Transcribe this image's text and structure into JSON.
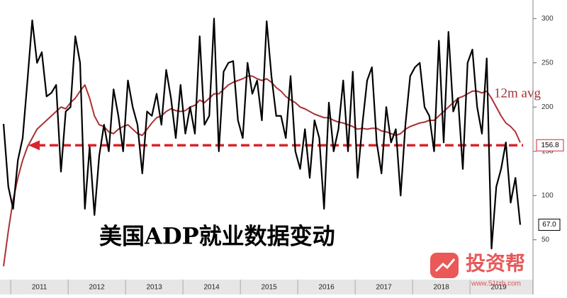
{
  "chart_data": {
    "type": "line",
    "title": "美国ADP就业数据变动",
    "annotation": "12m avg",
    "watermark": {
      "brand": "投资帮",
      "url": "www.51tzb.com"
    },
    "categories": [
      null,
      null,
      null,
      null,
      null,
      null,
      null,
      null,
      null,
      null,
      null,
      null,
      null,
      null,
      null,
      null,
      null,
      null,
      null,
      null,
      null,
      null,
      null,
      null,
      null,
      null,
      null,
      null,
      null,
      null,
      null,
      null,
      null,
      null,
      null,
      null,
      null,
      null,
      null,
      null,
      null,
      null,
      null,
      null,
      null,
      null,
      null,
      null,
      null,
      null,
      null,
      null,
      null,
      null,
      null,
      null,
      null,
      null,
      null,
      null,
      null,
      null,
      null,
      null,
      null,
      null,
      null,
      null,
      null,
      null,
      null,
      null,
      null,
      null,
      null,
      null,
      null,
      null,
      null,
      null,
      null,
      null,
      null,
      null,
      null,
      null,
      null,
      null,
      null,
      null,
      null,
      null,
      null,
      null,
      null,
      null,
      null,
      null,
      null,
      null,
      null,
      null,
      null,
      null,
      null,
      null,
      null,
      null,
      null
    ],
    "year_labels": [
      "2011",
      "2012",
      "2013",
      "2014",
      "2015",
      "2016",
      "2017",
      "2018",
      "2019"
    ],
    "series": [
      {
        "name": "ADP",
        "color": "#000000",
        "end_label": "67.0",
        "values": [
          181,
          110,
          85,
          140,
          165,
          230,
          298,
          250,
          262,
          212,
          216,
          225,
          127,
          195,
          200,
          280,
          250,
          85,
          155,
          78,
          145,
          180,
          150,
          220,
          190,
          150,
          230,
          200,
          180,
          125,
          195,
          190,
          215,
          180,
          242,
          210,
          165,
          225,
          170,
          200,
          170,
          280,
          180,
          190,
          300,
          150,
          240,
          250,
          252,
          185,
          165,
          250,
          215,
          230,
          185,
          297,
          235,
          190,
          190,
          165,
          235,
          150,
          130,
          175,
          120,
          185,
          165,
          85,
          205,
          150,
          175,
          230,
          150,
          240,
          120,
          180,
          230,
          245,
          160,
          125,
          200,
          160,
          175,
          100,
          180,
          235,
          245,
          250,
          200,
          190,
          150,
          275,
          160,
          285,
          195,
          210,
          130,
          250,
          265,
          200,
          170,
          255,
          40,
          110,
          130,
          160,
          92,
          120,
          67
        ]
      },
      {
        "name": "12m avg",
        "color": "#a83236",
        "values": [
          20,
          60,
          95,
          120,
          140,
          155,
          165,
          175,
          180,
          185,
          190,
          195,
          200,
          198,
          205,
          210,
          218,
          225,
          210,
          190,
          180,
          178,
          172,
          170,
          175,
          178,
          180,
          175,
          170,
          168,
          175,
          182,
          188,
          190,
          195,
          198,
          196,
          195,
          196,
          200,
          202,
          208,
          205,
          210,
          215,
          215,
          220,
          225,
          228,
          230,
          232,
          235,
          235,
          232,
          230,
          232,
          228,
          222,
          218,
          212,
          208,
          205,
          200,
          198,
          195,
          192,
          190,
          188,
          188,
          185,
          183,
          182,
          180,
          178,
          175,
          176,
          175,
          176,
          176,
          173,
          172,
          170,
          168,
          170,
          175,
          178,
          180,
          182,
          183,
          185,
          185,
          190,
          195,
          200,
          205,
          210,
          212,
          215,
          218,
          218,
          216,
          218,
          210,
          200,
          190,
          182,
          178,
          172,
          160
        ]
      }
    ],
    "ref_line": 156.8,
    "ref_color": "#d9252b",
    "ylim": [
      5,
      321
    ],
    "yticks": [
      50,
      100,
      150,
      200,
      250,
      300
    ]
  }
}
